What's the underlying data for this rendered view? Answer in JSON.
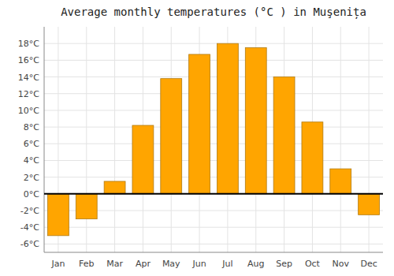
{
  "chart_data": {
    "type": "bar",
    "title": "Average monthly temperatures (°C ) in Muşenița",
    "categories": [
      "Jan",
      "Feb",
      "Mar",
      "Apr",
      "May",
      "Jun",
      "Jul",
      "Aug",
      "Sep",
      "Oct",
      "Nov",
      "Dec"
    ],
    "values": [
      -5.0,
      -3.0,
      1.5,
      8.2,
      13.8,
      16.7,
      18.0,
      17.5,
      14.0,
      8.6,
      3.0,
      -2.5
    ],
    "color": "#FFA500",
    "ylim": [
      -7,
      20
    ],
    "yticks": [
      {
        "value": -6,
        "label": "-6°C"
      },
      {
        "value": -4,
        "label": "-4°C"
      },
      {
        "value": -2,
        "label": "-2°C"
      },
      {
        "value": 0,
        "label": "0°C"
      },
      {
        "value": 2,
        "label": "2°C"
      },
      {
        "value": 4,
        "label": "4°C"
      },
      {
        "value": 6,
        "label": "6°C"
      },
      {
        "value": 8,
        "label": "8°C"
      },
      {
        "value": 10,
        "label": "10°C"
      },
      {
        "value": 12,
        "label": "12°C"
      },
      {
        "value": 14,
        "label": "14°C"
      },
      {
        "value": 16,
        "label": "16°C"
      },
      {
        "value": 18,
        "label": "18°C"
      }
    ],
    "grid": true
  }
}
